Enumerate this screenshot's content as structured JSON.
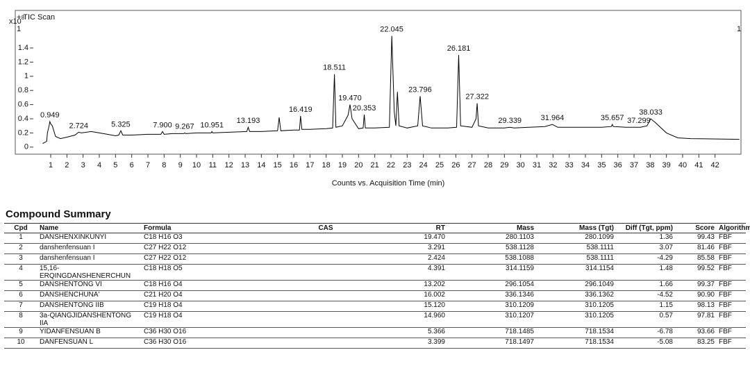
{
  "chart_data": {
    "type": "line",
    "title": "+ TIC Scan",
    "y_multiplier": {
      "base": "x10",
      "exp": "8"
    },
    "corner_markers": [
      "1",
      "1"
    ],
    "xlabel": "Counts vs. Acquisition Time (min)",
    "xlim": [
      0.1,
      43.6
    ],
    "ylim": [
      -0.1,
      1.93
    ],
    "xticks": [
      1,
      2,
      3,
      4,
      5,
      6,
      7,
      8,
      9,
      10,
      11,
      12,
      13,
      14,
      15,
      16,
      17,
      18,
      19,
      20,
      21,
      22,
      23,
      24,
      25,
      26,
      27,
      28,
      29,
      30,
      31,
      32,
      33,
      34,
      35,
      36,
      37,
      38,
      39,
      40,
      41,
      42
    ],
    "yticks": [
      0,
      0.2,
      0.4,
      0.6,
      0.8,
      1,
      1.2,
      1.4
    ],
    "color": "#000000",
    "x": [
      0.5,
      0.75,
      0.8,
      0.9,
      0.95,
      1.0,
      1.1,
      1.3,
      1.6,
      2.0,
      2.5,
      2.72,
      2.9,
      3.5,
      4.0,
      4.5,
      5.0,
      5.2,
      5.33,
      5.45,
      6.0,
      7.0,
      7.8,
      7.9,
      8.0,
      8.5,
      9.2,
      9.27,
      9.35,
      10.0,
      10.9,
      10.95,
      11.0,
      12.0,
      13.1,
      13.19,
      13.28,
      14.0,
      15.0,
      15.1,
      15.2,
      16.0,
      16.35,
      16.42,
      16.5,
      17.0,
      18.0,
      18.4,
      18.51,
      18.6,
      19.0,
      19.35,
      19.47,
      19.6,
      20.0,
      20.28,
      20.35,
      20.42,
      21.0,
      21.9,
      22.05,
      22.2,
      22.3,
      22.4,
      22.5,
      23.0,
      23.65,
      23.8,
      23.95,
      24.5,
      25.5,
      26.05,
      26.18,
      26.3,
      27.0,
      27.25,
      27.32,
      27.4,
      28.0,
      29.0,
      29.34,
      29.6,
      30.5,
      31.5,
      31.96,
      32.3,
      33.5,
      35.0,
      35.6,
      35.66,
      35.72,
      36.5,
      37.2,
      37.3,
      37.4,
      37.8,
      38.03,
      38.3,
      39.0,
      39.7,
      40.5,
      43.5
    ],
    "values": [
      0.05,
      0.08,
      0.2,
      0.3,
      0.36,
      0.33,
      0.3,
      0.15,
      0.12,
      0.14,
      0.17,
      0.21,
      0.2,
      0.22,
      0.2,
      0.18,
      0.16,
      0.17,
      0.23,
      0.17,
      0.17,
      0.18,
      0.18,
      0.22,
      0.18,
      0.19,
      0.19,
      0.2,
      0.19,
      0.2,
      0.2,
      0.22,
      0.2,
      0.21,
      0.22,
      0.28,
      0.22,
      0.22,
      0.23,
      0.42,
      0.23,
      0.24,
      0.24,
      0.44,
      0.25,
      0.25,
      0.26,
      0.27,
      1.03,
      0.28,
      0.3,
      0.45,
      0.6,
      0.4,
      0.26,
      0.27,
      0.46,
      0.27,
      0.27,
      0.28,
      1.57,
      0.5,
      0.3,
      0.78,
      0.3,
      0.27,
      0.3,
      0.72,
      0.3,
      0.27,
      0.27,
      0.28,
      1.3,
      0.3,
      0.28,
      0.4,
      0.62,
      0.3,
      0.27,
      0.27,
      0.28,
      0.27,
      0.28,
      0.29,
      0.32,
      0.28,
      0.28,
      0.28,
      0.29,
      0.32,
      0.29,
      0.28,
      0.28,
      0.28,
      0.28,
      0.3,
      0.4,
      0.35,
      0.2,
      0.13,
      0.12,
      0.11
    ],
    "peaks": [
      {
        "value": 0.949,
        "label": "0.949",
        "height": 0.36
      },
      {
        "value": 2.724,
        "label": "2.724",
        "height": 0.21
      },
      {
        "value": 5.325,
        "label": "5.325",
        "height": 0.23
      },
      {
        "value": 7.9,
        "label": "7.900",
        "height": 0.22
      },
      {
        "value": 9.267,
        "label": "9.267",
        "height": 0.2
      },
      {
        "value": 10.951,
        "label": "10.951",
        "height": 0.22
      },
      {
        "value": 13.193,
        "label": "13.193",
        "height": 0.28
      },
      {
        "value": 16.419,
        "label": "16.419",
        "height": 0.44
      },
      {
        "value": 18.511,
        "label": "18.511",
        "height": 1.03
      },
      {
        "value": 19.47,
        "label": "19.470",
        "height": 0.6
      },
      {
        "value": 20.353,
        "label": "20.353",
        "height": 0.46
      },
      {
        "value": 22.045,
        "label": "22.045",
        "height": 1.57
      },
      {
        "value": 23.796,
        "label": "23.796",
        "height": 0.72
      },
      {
        "value": 26.181,
        "label": "26.181",
        "height": 1.3
      },
      {
        "value": 27.322,
        "label": "27.322",
        "height": 0.62
      },
      {
        "value": 29.339,
        "label": "29.339",
        "height": 0.28
      },
      {
        "value": 31.964,
        "label": "31.964",
        "height": 0.32
      },
      {
        "value": 35.657,
        "label": "35.657",
        "height": 0.32
      },
      {
        "value": 37.299,
        "label": "37.299",
        "height": 0.28
      },
      {
        "value": 38.033,
        "label": "38.033",
        "height": 0.4
      }
    ]
  },
  "summary": {
    "title": "Compound Summary",
    "headers": [
      "Cpd",
      "Name",
      "Formula",
      "CAS",
      "RT",
      "Mass",
      "Mass (Tgt)",
      "Diff (Tgt, ppm)",
      "Score",
      "Algorithm"
    ],
    "rows": [
      {
        "cpd": "1",
        "name": "DANSHENXINKUNYI",
        "formula": "C18 H16 O3",
        "rt": "19.470",
        "mass": "280.1103",
        "tgt": "280.1099",
        "diff": "1.36",
        "score": "99.43",
        "alg": "FBF"
      },
      {
        "cpd": "2",
        "name": "danshenfensuan I",
        "formula": "C27 H22 O12",
        "rt": "3.291",
        "mass": "538.1128",
        "tgt": "538.1111",
        "diff": "3.07",
        "score": "81.46",
        "alg": "FBF"
      },
      {
        "cpd": "3",
        "name": "danshenfensuan I",
        "formula": "C27 H22 O12",
        "rt": "2.424",
        "mass": "538.1088",
        "tgt": "538.1111",
        "diff": "-4.29",
        "score": "85.58",
        "alg": "FBF"
      },
      {
        "cpd": "4",
        "name": "15,16-ERQINGDANSHENERCHUN",
        "formula": "C18 H18 O5",
        "rt": "4.391",
        "mass": "314.1159",
        "tgt": "314.1154",
        "diff": "1.48",
        "score": "99.52",
        "alg": "FBF"
      },
      {
        "cpd": "5",
        "name": "DANSHENTONG VI",
        "formula": "C18 H16 O4",
        "rt": "13.202",
        "mass": "296.1054",
        "tgt": "296.1049",
        "diff": "1.66",
        "score": "99.37",
        "alg": "FBF"
      },
      {
        "cpd": "6",
        "name": "DANSHENCHUNA'",
        "formula": "C21 H20 O4",
        "rt": "16.002",
        "mass": "336.1346",
        "tgt": "336.1362",
        "diff": "-4.52",
        "score": "90.90",
        "alg": "FBF"
      },
      {
        "cpd": "7",
        "name": "DANSHENTONG IIB",
        "formula": "C19 H18 O4",
        "rt": "15.120",
        "mass": "310.1209",
        "tgt": "310.1205",
        "diff": "1.15",
        "score": "98.13",
        "alg": "FBF"
      },
      {
        "cpd": "8",
        "name": "3a-QIANGJIDANSHENTONG IIA",
        "formula": "C19 H18 O4",
        "rt": "14.960",
        "mass": "310.1207",
        "tgt": "310.1205",
        "diff": "0.57",
        "score": "97.81",
        "alg": "FBF"
      },
      {
        "cpd": "9",
        "name": "YIDANFENSUAN B",
        "formula": "C36 H30 O16",
        "rt": "5.366",
        "mass": "718.1485",
        "tgt": "718.1534",
        "diff": "-6.78",
        "score": "93.66",
        "alg": "FBF"
      },
      {
        "cpd": "10",
        "name": "DANFENSUAN L",
        "formula": "C36 H30 O16",
        "rt": "3.399",
        "mass": "718.1497",
        "tgt": "718.1534",
        "diff": "-5.08",
        "score": "83.25",
        "alg": "FBF"
      }
    ]
  }
}
